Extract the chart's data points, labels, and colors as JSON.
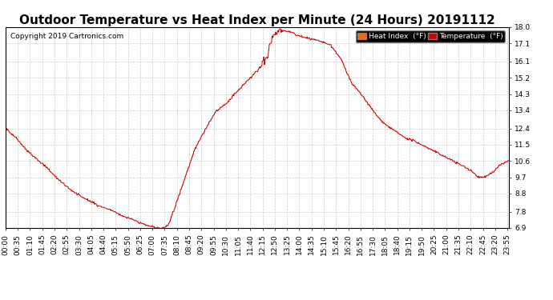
{
  "title": "Outdoor Temperature vs Heat Index per Minute (24 Hours) 20191112",
  "copyright_text": "Copyright 2019 Cartronics.com",
  "line_color": "#cc0000",
  "background_color": "#ffffff",
  "plot_bg_color": "#ffffff",
  "ylim": [
    6.9,
    18.0
  ],
  "yticks": [
    6.9,
    7.8,
    8.8,
    9.7,
    10.6,
    11.5,
    12.4,
    13.4,
    14.3,
    15.2,
    16.1,
    17.1,
    18.0
  ],
  "legend_heat_index_bg": "#ff6600",
  "legend_temp_bg": "#cc0000",
  "legend_heat_index_label": "Heat Index  (°F)",
  "legend_temp_label": "Temperature  (°F)",
  "title_fontsize": 11,
  "copyright_fontsize": 6.5,
  "tick_fontsize": 6.5,
  "grid_color": "#cccccc",
  "grid_linestyle": "--",
  "num_minutes": 1440,
  "ctrl_hours": [
    0,
    0.5,
    1.0,
    1.5,
    2.0,
    2.5,
    3.0,
    3.5,
    4.0,
    4.5,
    5.0,
    5.5,
    6.0,
    6.25,
    6.5,
    6.75,
    7.0,
    7.25,
    7.4,
    7.5,
    7.75,
    8.0,
    8.5,
    9.0,
    9.5,
    10.0,
    10.5,
    11.0,
    11.5,
    12.0,
    12.25,
    12.5,
    12.6,
    12.75,
    13.0,
    13.25,
    13.5,
    14.0,
    14.5,
    15.0,
    15.25,
    15.5,
    16.0,
    16.5,
    17.0,
    17.5,
    18.0,
    18.5,
    19.0,
    19.5,
    20.0,
    20.5,
    21.0,
    21.5,
    22.0,
    22.25,
    22.5,
    22.75,
    23.0,
    23.25,
    23.5,
    23.75,
    24.0
  ],
  "ctrl_vals": [
    12.4,
    11.9,
    11.2,
    10.7,
    10.2,
    9.6,
    9.1,
    8.7,
    8.4,
    8.1,
    7.9,
    7.6,
    7.4,
    7.25,
    7.15,
    7.05,
    6.95,
    6.91,
    6.9,
    6.92,
    7.05,
    7.8,
    9.5,
    11.2,
    12.3,
    13.3,
    13.75,
    14.4,
    15.0,
    15.6,
    16.0,
    16.5,
    17.0,
    17.4,
    17.8,
    17.8,
    17.75,
    17.5,
    17.35,
    17.2,
    17.1,
    17.0,
    16.2,
    14.9,
    14.2,
    13.4,
    12.7,
    12.3,
    11.9,
    11.7,
    11.4,
    11.1,
    10.8,
    10.5,
    10.2,
    10.0,
    9.75,
    9.7,
    9.8,
    10.0,
    10.3,
    10.5,
    10.6
  ]
}
